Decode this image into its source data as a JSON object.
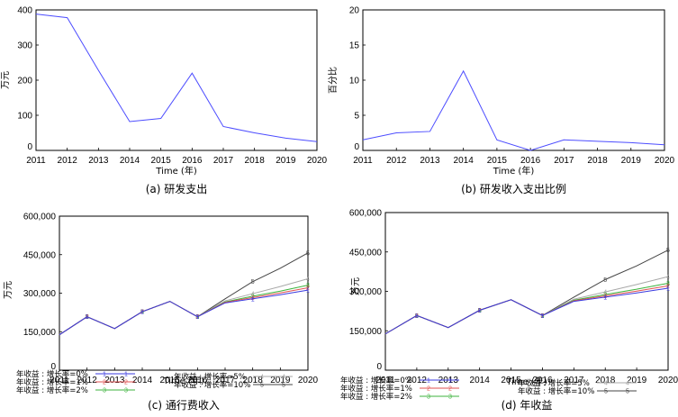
{
  "chart_data": [
    {
      "type": "line",
      "caption": "(a) 研发支出",
      "xlabel": "Time (年)",
      "ylabel": "万元",
      "x": [
        2011,
        2012,
        2013,
        2014,
        2015,
        2016,
        2017,
        2018,
        2019,
        2020
      ],
      "ylim": [
        0,
        400
      ],
      "yticks": [
        0,
        100,
        200,
        300,
        400
      ],
      "ytick_labels": [
        "0",
        "100",
        "200",
        "300",
        "400"
      ],
      "grid": false,
      "series": [
        {
          "color": "#4d4dff",
          "values": [
            388,
            378,
            228,
            82,
            91,
            220,
            68,
            50,
            35,
            25
          ]
        }
      ]
    },
    {
      "type": "line",
      "caption": "(b) 研发收入支出比例",
      "xlabel": "Time (年)",
      "ylabel": "百分比",
      "x": [
        2011,
        2012,
        2013,
        2014,
        2015,
        2016,
        2017,
        2018,
        2019,
        2020
      ],
      "ylim": [
        0,
        20
      ],
      "yticks": [
        0,
        5,
        10,
        15,
        20
      ],
      "ytick_labels": [
        "0",
        "5",
        "10",
        "15",
        "20"
      ],
      "grid": false,
      "series": [
        {
          "color": "#4d4dff",
          "values": [
            1.5,
            2.5,
            2.7,
            11.3,
            1.5,
            -0.2,
            1.5,
            1.3,
            1.1,
            0.8
          ]
        }
      ]
    },
    {
      "type": "line",
      "caption": "(c) 通行费收入",
      "xlabel": "Time (年)",
      "ylabel": "万元",
      "x": [
        2011,
        2012,
        2013,
        2014,
        2015,
        2016,
        2017,
        2018,
        2019,
        2020
      ],
      "ylim": [
        0,
        600000
      ],
      "yticks": [
        0,
        150000,
        300000,
        450000,
        600000
      ],
      "ytick_labels": [
        "0",
        "150,000",
        "300,000",
        "450,000",
        "600,000"
      ],
      "grid": false,
      "legend_position": "bottom",
      "series": [
        {
          "name": "年收益 : 增长率=0%",
          "marker": "1",
          "color": "#3a3adf",
          "values": [
            138000,
            208000,
            162000,
            228000,
            268000,
            208000,
            262000,
            278000,
            294000,
            312000
          ]
        },
        {
          "name": "年收益 : 增长率=1%",
          "marker": "2",
          "color": "#e05050",
          "values": [
            138000,
            208000,
            162000,
            228000,
            268000,
            208000,
            264000,
            283000,
            301000,
            321000
          ]
        },
        {
          "name": "年收益 : 增长率=2%",
          "marker": "3",
          "color": "#3cb33c",
          "values": [
            138000,
            208000,
            162000,
            228000,
            268000,
            208000,
            266000,
            288000,
            308000,
            331000
          ]
        },
        {
          "name": "年收益 : 增长率=5%",
          "marker": "4",
          "color": "#a8a8a8",
          "values": [
            138000,
            208000,
            162000,
            228000,
            268000,
            208000,
            270000,
            298000,
            326000,
            356000
          ]
        },
        {
          "name": "年收益 : 增长率=10%",
          "marker": "5",
          "color": "#444444",
          "values": [
            138000,
            208000,
            162000,
            228000,
            268000,
            208000,
            278000,
            345000,
            397000,
            457000
          ]
        }
      ]
    },
    {
      "type": "line",
      "caption": "(d) 年收益",
      "xlabel": "Time (年)",
      "ylabel": "万元",
      "x": [
        2011,
        2012,
        2013,
        2014,
        2015,
        2016,
        2017,
        2018,
        2019,
        2020
      ],
      "ylim": [
        0,
        600000
      ],
      "yticks": [
        0,
        150000,
        300000,
        450000,
        600000
      ],
      "ytick_labels": [
        "0",
        "150,000",
        "300,000",
        "450,000",
        "600,000"
      ],
      "grid": false,
      "legend_position": "bottom",
      "series": [
        {
          "name": "年收益 : 增长率=0%",
          "marker": "1",
          "color": "#3a3adf",
          "values": [
            138000,
            208000,
            162000,
            228000,
            268000,
            208000,
            262000,
            278000,
            294000,
            312000
          ]
        },
        {
          "name": "年收益 : 增长率=1%",
          "marker": "2",
          "color": "#e05050",
          "values": [
            138000,
            208000,
            162000,
            228000,
            268000,
            208000,
            264000,
            283000,
            301000,
            321000
          ]
        },
        {
          "name": "年收益 : 增长率=2%",
          "marker": "3",
          "color": "#3cb33c",
          "values": [
            138000,
            208000,
            162000,
            228000,
            268000,
            208000,
            266000,
            288000,
            308000,
            331000
          ]
        },
        {
          "name": "年收益 : 增长率=5%",
          "marker": "4",
          "color": "#a8a8a8",
          "values": [
            138000,
            208000,
            162000,
            228000,
            268000,
            208000,
            270000,
            298000,
            326000,
            356000
          ]
        },
        {
          "name": "年收益 : 增长率=10%",
          "marker": "5",
          "color": "#444444",
          "values": [
            138000,
            208000,
            162000,
            228000,
            268000,
            208000,
            278000,
            345000,
            397000,
            457000
          ]
        }
      ]
    }
  ]
}
